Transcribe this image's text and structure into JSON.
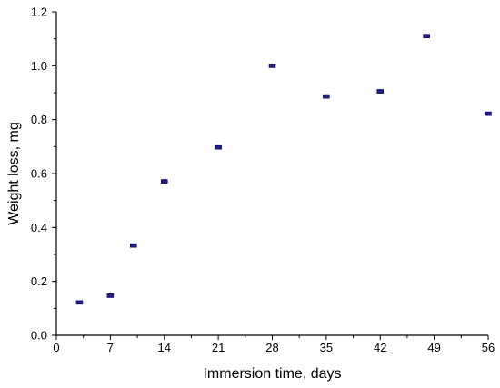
{
  "chart_data": {
    "type": "scatter",
    "xlabel": "Immersion time, days",
    "ylabel": "Weight loss, mg",
    "xlim": [
      0,
      56
    ],
    "ylim": [
      0,
      1.2
    ],
    "xticks": [
      0,
      7,
      14,
      21,
      28,
      35,
      42,
      49,
      56
    ],
    "xtick_labels": [
      "0",
      "7",
      "14",
      "21",
      "28",
      "35",
      "42",
      "49",
      "56"
    ],
    "yticks": [
      0,
      0.2,
      0.4,
      0.6,
      0.8,
      1.0,
      1.2
    ],
    "ytick_labels": [
      "0.0",
      "0.2",
      "0.4",
      "0.6",
      "0.8",
      "1.0",
      "1.2"
    ],
    "grid": false,
    "marker_color": "#1f1f8a",
    "points": [
      {
        "x": 3,
        "y": 0.122,
        "err": 0.006
      },
      {
        "x": 7,
        "y": 0.147,
        "err": 0.006
      },
      {
        "x": 10,
        "y": 0.333,
        "err": 0.006
      },
      {
        "x": 14,
        "y": 0.571,
        "err": 0.006
      },
      {
        "x": 21,
        "y": 0.697,
        "err": 0.006
      },
      {
        "x": 28,
        "y": 1.0,
        "err": 0.006
      },
      {
        "x": 35,
        "y": 0.886,
        "err": 0.006
      },
      {
        "x": 42,
        "y": 0.905,
        "err": 0.006
      },
      {
        "x": 48,
        "y": 1.11,
        "err": 0.006
      },
      {
        "x": 56,
        "y": 0.822,
        "err": 0.006
      }
    ]
  }
}
